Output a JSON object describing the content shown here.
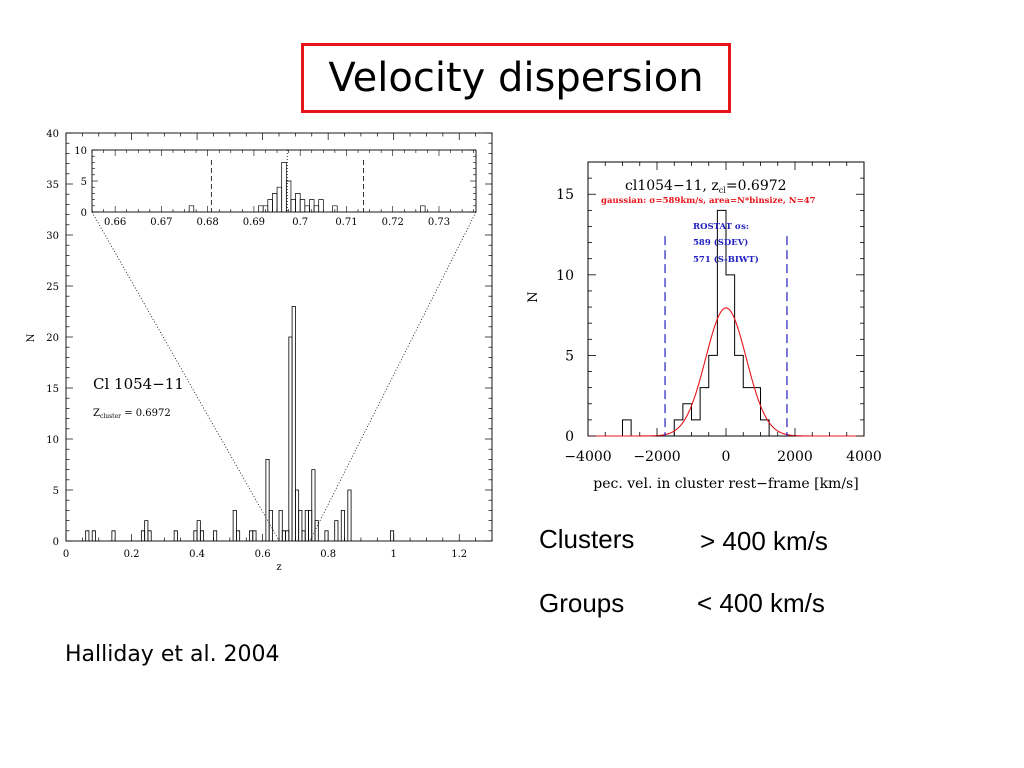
{
  "slide": {
    "title": "Velocity dispersion",
    "citation": "Halliday et al. 2004",
    "clusters_label": "Clusters",
    "clusters_value": "> 400 km/s",
    "groups_label": "Groups",
    "groups_value": "< 400 km/s"
  },
  "chart_data": [
    {
      "type": "bar",
      "panel": "left-main",
      "xlabel": "z",
      "ylabel": "N",
      "xlim": [
        0,
        1.3
      ],
      "ylim": [
        0,
        40
      ],
      "x_ticks": [
        0,
        0.2,
        0.4,
        0.6,
        0.8,
        1,
        1.2
      ],
      "x_tick_labels": [
        "0",
        "0.2",
        "0.4",
        "0.6",
        "0.8",
        "1",
        "1.2"
      ],
      "y_ticks": [
        0,
        5,
        10,
        15,
        20,
        25,
        30,
        35,
        40
      ],
      "y_tick_labels": [
        "0",
        "5",
        "10",
        "15",
        "20",
        "25",
        "30",
        "35",
        "40"
      ],
      "annotation_name": "Cl 1054−11",
      "annotation_z_label": "Z",
      "annotation_z_sub": "cluster",
      "annotation_z_value": " = 0.6972",
      "bin_width": 0.01,
      "bins": [
        [
          0.06,
          1
        ],
        [
          0.08,
          1
        ],
        [
          0.14,
          1
        ],
        [
          0.23,
          1
        ],
        [
          0.24,
          2
        ],
        [
          0.25,
          1
        ],
        [
          0.33,
          1
        ],
        [
          0.39,
          1
        ],
        [
          0.4,
          2
        ],
        [
          0.41,
          1
        ],
        [
          0.45,
          1
        ],
        [
          0.51,
          3
        ],
        [
          0.52,
          1
        ],
        [
          0.56,
          1
        ],
        [
          0.57,
          1
        ],
        [
          0.61,
          8
        ],
        [
          0.62,
          3
        ],
        [
          0.65,
          3
        ],
        [
          0.66,
          1
        ],
        [
          0.67,
          1
        ],
        [
          0.68,
          20
        ],
        [
          0.69,
          23
        ],
        [
          0.7,
          5
        ],
        [
          0.71,
          3
        ],
        [
          0.72,
          1
        ],
        [
          0.73,
          3
        ],
        [
          0.74,
          3
        ],
        [
          0.75,
          7
        ],
        [
          0.76,
          2
        ],
        [
          0.79,
          1
        ],
        [
          0.82,
          2
        ],
        [
          0.84,
          3
        ],
        [
          0.86,
          5
        ],
        [
          0.99,
          1
        ]
      ],
      "guide_lines": [
        0.6808,
        0.7137
      ]
    },
    {
      "type": "bar",
      "panel": "left-inset",
      "xlim": [
        0.655,
        0.738
      ],
      "ylim": [
        0,
        10
      ],
      "x_ticks": [
        0.66,
        0.67,
        0.68,
        0.69,
        0.7,
        0.71,
        0.72,
        0.73
      ],
      "x_tick_labels": [
        "0.66",
        "0.67",
        "0.68",
        "0.69",
        "0.7",
        "0.71",
        "0.72",
        "0.73"
      ],
      "y_ticks": [
        0,
        5,
        10
      ],
      "y_tick_labels": [
        "0",
        "5",
        "10"
      ],
      "bin_width": 0.001,
      "bins": [
        [
          0.676,
          1
        ],
        [
          0.691,
          1
        ],
        [
          0.692,
          1
        ],
        [
          0.693,
          2
        ],
        [
          0.694,
          3
        ],
        [
          0.695,
          4
        ],
        [
          0.696,
          8
        ],
        [
          0.697,
          5
        ],
        [
          0.698,
          2
        ],
        [
          0.699,
          3
        ],
        [
          0.7,
          2
        ],
        [
          0.701,
          1
        ],
        [
          0.702,
          2
        ],
        [
          0.703,
          1
        ],
        [
          0.704,
          2
        ],
        [
          0.707,
          1
        ],
        [
          0.726,
          1
        ]
      ],
      "dashed_lines": [
        0.6808,
        0.7137
      ],
      "dotted_line": 0.6972
    },
    {
      "type": "bar",
      "panel": "right",
      "title": "cl1054−11,",
      "title_z": "z",
      "title_z_sub": "cl",
      "title_z_value": "=0.6972",
      "subtitle": "gaussian: σ=589km/s, area=N*binsize, N=47",
      "legend_lines": [
        "ROSTAT σs:",
        "589 (SDEV)",
        "571 (S-BIWT)"
      ],
      "xlabel": "pec. vel. in cluster rest−frame [km/s]",
      "ylabel": "N",
      "xlim": [
        -4000,
        4000
      ],
      "ylim": [
        0,
        17
      ],
      "x_ticks": [
        -4000,
        -2000,
        0,
        2000,
        4000
      ],
      "x_tick_labels": [
        "−4000",
        "−2000",
        "0",
        "2000",
        "4000"
      ],
      "y_ticks": [
        0,
        5,
        10,
        15
      ],
      "y_tick_labels": [
        "0",
        "5",
        "10",
        "15"
      ],
      "bin_edges": [
        -3000,
        -2750,
        -2500,
        -2250,
        -2000,
        -1750,
        -1500,
        -1250,
        -1000,
        -750,
        -500,
        -250,
        0,
        250,
        500,
        750,
        1000,
        1250,
        1500,
        1750,
        2000
      ],
      "counts": [
        1,
        0,
        0,
        0,
        0,
        0,
        1,
        2,
        1,
        3,
        5,
        14,
        10,
        5,
        3,
        3,
        1,
        0,
        0,
        0
      ],
      "gaussian": {
        "sigma": 589,
        "peak": 7.95,
        "color": "#e8141a"
      },
      "dashed_lines": [
        -1767,
        1767
      ],
      "dashed_color": "#2020c0",
      "legend_color": "#2020c0",
      "subtitle_color": "#e8141a"
    }
  ]
}
